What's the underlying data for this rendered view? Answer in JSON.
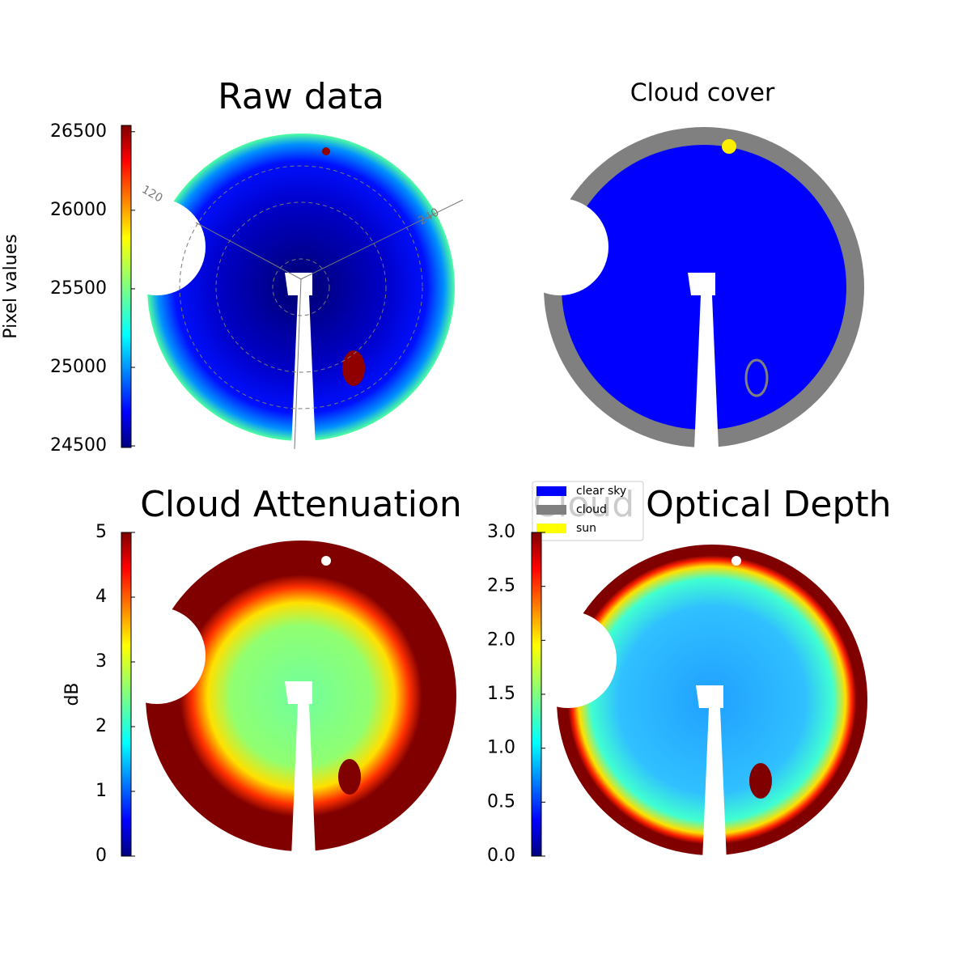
{
  "chart_data": [
    {
      "type": "image",
      "title": "Raw data",
      "angle_labels": [
        "120",
        "240"
      ],
      "colorbar": {
        "label": "Pixel values",
        "colormap": "jet",
        "lim": [
          24490,
          26540
        ],
        "ticks": [
          24500,
          25000,
          25500,
          26000,
          26500
        ]
      }
    },
    {
      "type": "image",
      "title": "Cloud cover",
      "legend": [
        {
          "name": "clear sky",
          "color": "#0000ff"
        },
        {
          "name": "cloud",
          "color": "#808080"
        },
        {
          "name": "sun",
          "color": "#ffff00"
        }
      ]
    },
    {
      "type": "image",
      "title": "Cloud Attenuation",
      "colorbar": {
        "label": "dB",
        "colormap": "jet",
        "lim": [
          0,
          5
        ],
        "ticks": [
          0,
          1,
          2,
          3,
          4,
          5
        ]
      }
    },
    {
      "type": "image",
      "title": "Cloud Optical Depth",
      "colorbar": {
        "colormap": "jet",
        "lim": [
          0,
          3
        ],
        "ticks": [
          {
            "value": 0,
            "label": "0.0"
          },
          {
            "value": 0.5,
            "label": "0.5"
          },
          {
            "value": 1,
            "label": "1.0"
          },
          {
            "value": 1.5,
            "label": "1.5"
          },
          {
            "value": 2,
            "label": "2.0"
          },
          {
            "value": 2.5,
            "label": "2.5"
          },
          {
            "value": 3,
            "label": "3.0"
          }
        ]
      }
    }
  ]
}
